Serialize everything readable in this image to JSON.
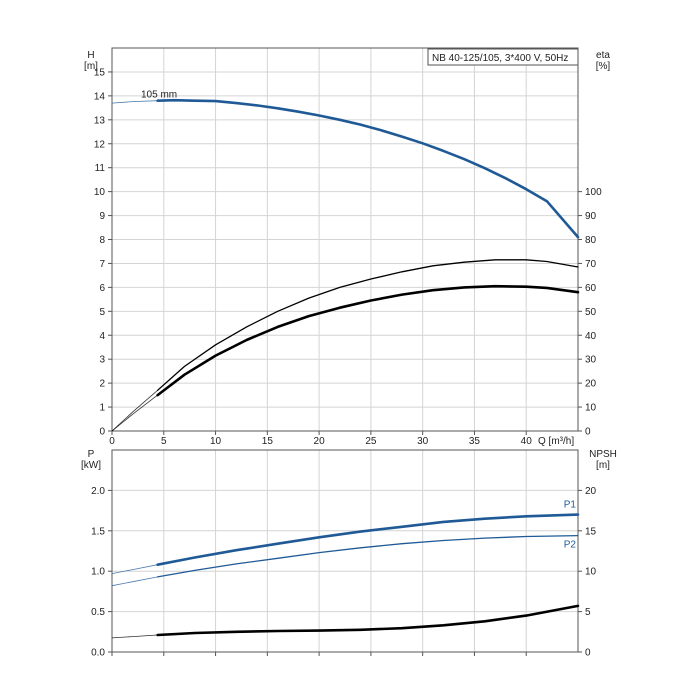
{
  "chart_data": [
    {
      "type": "line",
      "title_box": "NB 40-125/105, 3*400 V, 50Hz",
      "left_axis": {
        "label": "H",
        "unit": "[m]",
        "range": [
          0,
          16
        ],
        "ticks": [
          0,
          1,
          2,
          3,
          4,
          5,
          6,
          7,
          8,
          9,
          10,
          11,
          12,
          13,
          14,
          15
        ]
      },
      "right_axis": {
        "label": "eta",
        "unit": "[%]",
        "range": [
          0,
          160
        ],
        "ticks": [
          0,
          10,
          20,
          30,
          40,
          50,
          60,
          70,
          80,
          90,
          100
        ]
      },
      "x_axis": {
        "label": "Q [m³/h]",
        "range": [
          0,
          45
        ],
        "ticks": [
          0,
          5,
          10,
          15,
          20,
          25,
          30,
          35,
          40
        ]
      },
      "grid": true,
      "annotation": "105 mm",
      "series": [
        {
          "axis": "left",
          "color": "#1f5a96",
          "extended_x": [
            0,
            2,
            4.4
          ],
          "extended_y": [
            13.7,
            13.76,
            13.8
          ],
          "x": [
            4.4,
            6,
            8,
            10,
            12,
            14,
            16,
            18,
            20,
            22,
            24,
            26,
            28,
            30,
            32,
            34,
            36,
            38,
            40,
            42,
            45
          ],
          "y": [
            13.8,
            13.82,
            13.8,
            13.78,
            13.7,
            13.6,
            13.48,
            13.34,
            13.18,
            13,
            12.8,
            12.56,
            12.3,
            12.02,
            11.7,
            11.36,
            10.98,
            10.56,
            10.1,
            9.6,
            8.1
          ]
        },
        {
          "axis": "right",
          "color": "#000000",
          "width": "thin",
          "extended_x": [
            0,
            2,
            4.4
          ],
          "extended_y": [
            0,
            8,
            17
          ],
          "x": [
            4.4,
            7,
            10,
            13,
            16,
            19,
            22,
            25,
            28,
            31,
            34,
            37,
            40,
            42,
            45
          ],
          "y": [
            17,
            27,
            36,
            43.5,
            50,
            55.5,
            60,
            63.5,
            66.5,
            69,
            70.5,
            71.5,
            71.5,
            70.8,
            68.5
          ]
        },
        {
          "axis": "right",
          "color": "#000000",
          "width": "thick",
          "extended_x": [
            0,
            2,
            4.4
          ],
          "extended_y": [
            0,
            7,
            15
          ],
          "x": [
            4.4,
            7,
            10,
            13,
            16,
            19,
            22,
            25,
            28,
            31,
            34,
            37,
            40,
            42,
            45
          ],
          "y": [
            15,
            23.5,
            31.5,
            38,
            43.5,
            48,
            51.5,
            54.5,
            57,
            58.8,
            60,
            60.5,
            60.3,
            59.8,
            58
          ]
        }
      ]
    },
    {
      "type": "line",
      "left_axis": {
        "label": "P",
        "unit": "[kW]",
        "range": [
          0,
          2.5
        ],
        "ticks": [
          "0.0",
          "0.5",
          "1.0",
          "1.5",
          "2.0"
        ]
      },
      "right_axis": {
        "label": "NPSH",
        "unit": "[m]",
        "range": [
          0,
          25
        ],
        "ticks": [
          0,
          5,
          10,
          15,
          20
        ]
      },
      "x_axis": {
        "range": [
          0,
          45
        ],
        "ticks": [
          0,
          5,
          10,
          15,
          20,
          25,
          30,
          35,
          40
        ]
      },
      "grid": true,
      "series": [
        {
          "name": "P1",
          "axis": "left",
          "color": "#1f5a96",
          "width": "thick",
          "extended_x": [
            0,
            2,
            4.4
          ],
          "extended_y": [
            0.97,
            1.02,
            1.08
          ],
          "x": [
            4.4,
            8,
            12,
            16,
            20,
            24,
            28,
            32,
            36,
            40,
            45
          ],
          "y": [
            1.08,
            1.17,
            1.26,
            1.34,
            1.42,
            1.49,
            1.55,
            1.61,
            1.65,
            1.68,
            1.7
          ]
        },
        {
          "name": "P2",
          "axis": "left",
          "color": "#1f5a96",
          "width": "thin",
          "extended_x": [
            0,
            2,
            4.4
          ],
          "extended_y": [
            0.82,
            0.87,
            0.93
          ],
          "x": [
            4.4,
            8,
            12,
            16,
            20,
            24,
            28,
            32,
            36,
            40,
            45
          ],
          "y": [
            0.93,
            1.01,
            1.09,
            1.16,
            1.23,
            1.29,
            1.34,
            1.38,
            1.41,
            1.43,
            1.44
          ]
        },
        {
          "axis": "right",
          "color": "#000000",
          "width": "thick",
          "extended_x": [
            0,
            2,
            4.4
          ],
          "extended_y": [
            1.75,
            1.9,
            2.1
          ],
          "x": [
            4.4,
            8,
            12,
            16,
            20,
            24,
            28,
            32,
            36,
            40,
            45
          ],
          "y": [
            2.1,
            2.35,
            2.5,
            2.6,
            2.65,
            2.75,
            2.95,
            3.3,
            3.8,
            4.5,
            5.7
          ]
        }
      ]
    }
  ]
}
